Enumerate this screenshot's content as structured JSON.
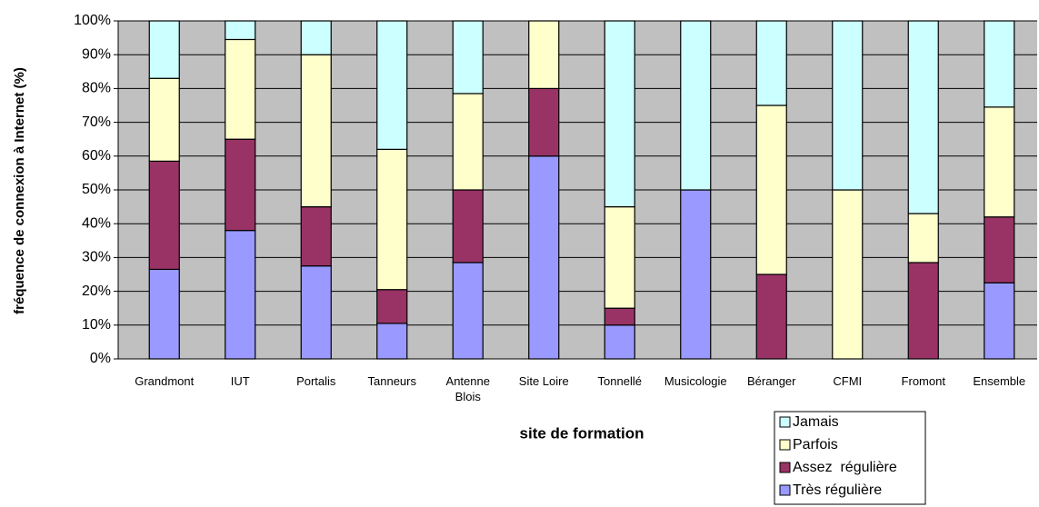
{
  "chart_data": {
    "type": "stacked_bar",
    "y_label": "fréquence de connexion à Internet (%)",
    "x_label": "site de formation",
    "categories": [
      "Grandmont",
      "IUT",
      "Portalis",
      "Tanneurs",
      "Antenne Blois",
      "Site Loire",
      "Tonnellé",
      "Musicologie",
      "Béranger",
      "CFMI",
      "Fromont",
      "Ensemble"
    ],
    "series": [
      {
        "name": "Très régulière",
        "color": "#9999ff",
        "values": [
          26.5,
          38,
          27.5,
          10.5,
          28.5,
          60,
          10,
          50,
          0,
          0,
          0,
          22.5
        ]
      },
      {
        "name": "Assez  régulière",
        "color": "#993366",
        "values": [
          32,
          27,
          17.5,
          10,
          21.5,
          20,
          5,
          0,
          25,
          0,
          28.5,
          19.5
        ]
      },
      {
        "name": "Parfois",
        "color": "#ffffcc",
        "values": [
          24.5,
          29.5,
          45,
          41.5,
          28.5,
          20,
          30,
          0,
          50,
          50,
          14.5,
          32.5
        ]
      },
      {
        "name": "Jamais",
        "color": "#ccffff",
        "values": [
          17,
          5.5,
          10,
          38,
          21.5,
          0,
          55,
          50,
          25,
          50,
          57,
          25.5
        ]
      }
    ],
    "ylim": [
      0,
      100
    ],
    "yticks": [
      {
        "value": 0,
        "label": "0%"
      },
      {
        "value": 10,
        "label": "10%"
      },
      {
        "value": 20,
        "label": "20%"
      },
      {
        "value": 30,
        "label": "30%"
      },
      {
        "value": 40,
        "label": "40%"
      },
      {
        "value": 50,
        "label": "50%"
      },
      {
        "value": 60,
        "label": "60%"
      },
      {
        "value": 70,
        "label": "70%"
      },
      {
        "value": 80,
        "label": "80%"
      },
      {
        "value": 90,
        "label": "90%"
      },
      {
        "value": 100,
        "label": "100%"
      }
    ],
    "grid": true,
    "legend": "bottom-right"
  }
}
